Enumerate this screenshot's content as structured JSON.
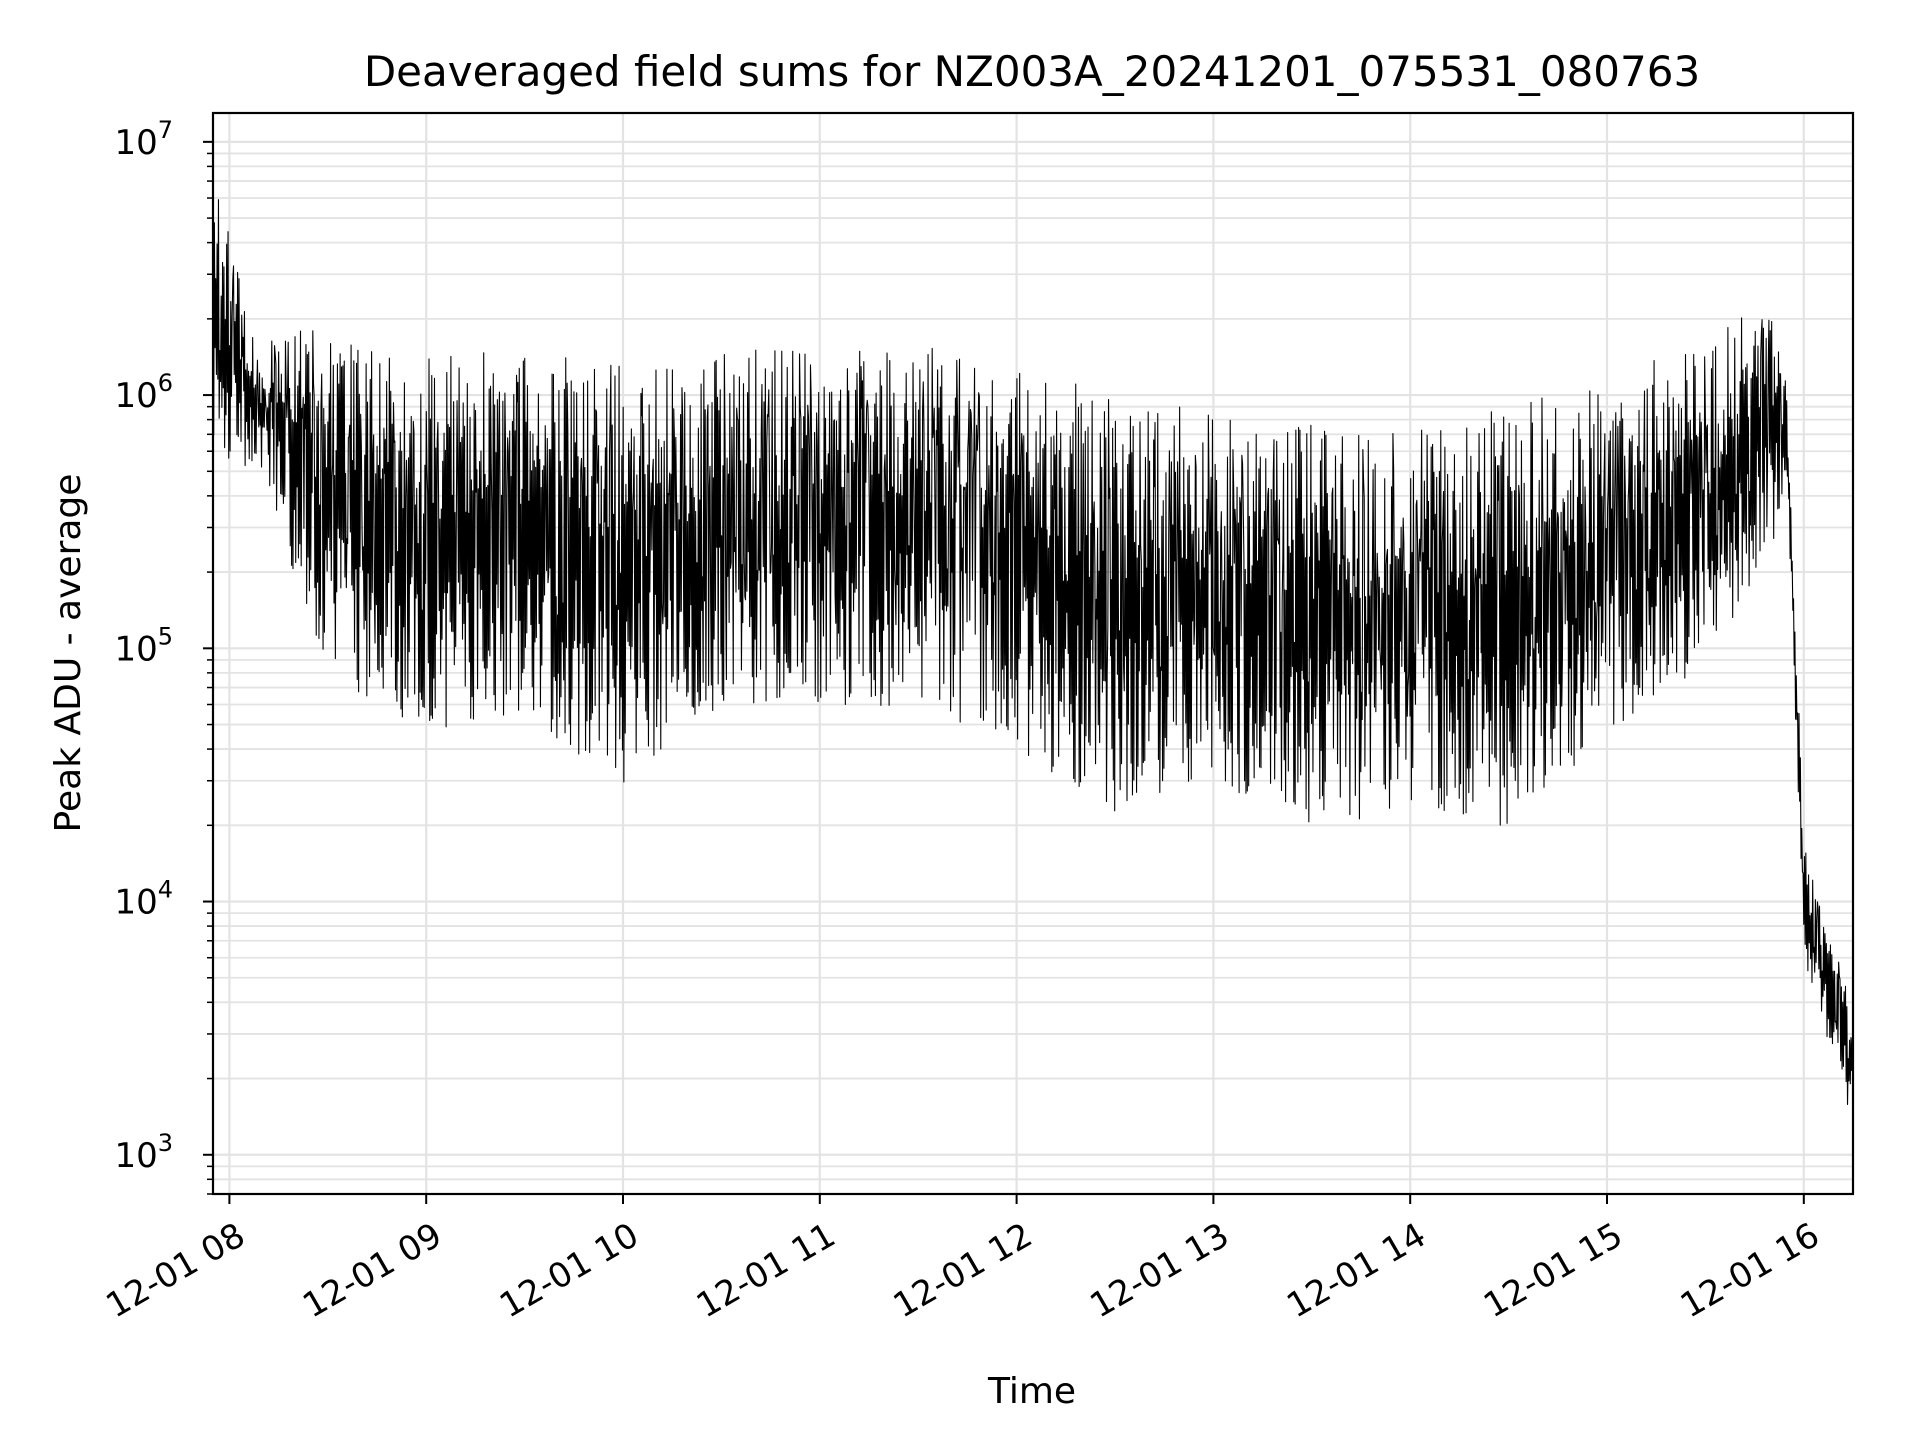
{
  "chart_data": {
    "type": "line",
    "title": "Deaveraged field sums for NZ003A_20241201_075531_080763",
    "xlabel": "Time",
    "ylabel": "Peak ADU - average",
    "y_scale": "log",
    "x_range": [
      "2024-12-01 07:55",
      "2024-12-01 16:15"
    ],
    "ylim": [
      700,
      13000000
    ],
    "grid": true,
    "line_color": "#000000",
    "x_ticks": [
      "12-01 08",
      "12-01 09",
      "12-01 10",
      "12-01 11",
      "12-01 12",
      "12-01 13",
      "12-01 14",
      "12-01 15",
      "12-01 16"
    ],
    "x_tick_times": [
      "2024-12-01 08:00",
      "2024-12-01 09:00",
      "2024-12-01 10:00",
      "2024-12-01 11:00",
      "2024-12-01 12:00",
      "2024-12-01 13:00",
      "2024-12-01 14:00",
      "2024-12-01 15:00",
      "2024-12-01 16:00"
    ],
    "y_ticks": [
      {
        "value": 1000,
        "base": "10",
        "exp": "3"
      },
      {
        "value": 10000,
        "base": "10",
        "exp": "4"
      },
      {
        "value": 100000,
        "base": "10",
        "exp": "5"
      },
      {
        "value": 1000000,
        "base": "10",
        "exp": "6"
      },
      {
        "value": 10000000,
        "base": "10",
        "exp": "7"
      }
    ],
    "series": [
      {
        "peaks": {
          "times": [
            "2024-12-01 07:55",
            "2024-12-01 08:10",
            "2024-12-01 08:15",
            "2024-12-01 08:30",
            "2024-12-01 09:00",
            "2024-12-01 09:30",
            "2024-12-01 10:00",
            "2024-12-01 10:30",
            "2024-12-01 11:00",
            "2024-12-01 11:30",
            "2024-12-01 12:00",
            "2024-12-01 12:30",
            "2024-12-01 13:00",
            "2024-12-01 13:30",
            "2024-12-01 14:00",
            "2024-12-01 14:30",
            "2024-12-01 15:00",
            "2024-12-01 15:30",
            "2024-12-01 15:50",
            "2024-12-01 15:55",
            "2024-12-01 16:00",
            "2024-12-01 16:15"
          ],
          "values": [
            8000000,
            1300000,
            2100000,
            1700000,
            1500000,
            1500000,
            1300000,
            1550000,
            1600000,
            1600000,
            1300000,
            1000000,
            850000,
            800000,
            750000,
            900000,
            1200000,
            1600000,
            2800000,
            1000000,
            17000,
            3800
          ]
        },
        "troughs": {
          "times": [
            "2024-12-01 07:55",
            "2024-12-01 08:10",
            "2024-12-01 08:15",
            "2024-12-01 08:30",
            "2024-12-01 09:00",
            "2024-12-01 09:30",
            "2024-12-01 10:00",
            "2024-12-01 10:30",
            "2024-12-01 11:00",
            "2024-12-01 11:30",
            "2024-12-01 12:00",
            "2024-12-01 12:30",
            "2024-12-01 13:00",
            "2024-12-01 13:30",
            "2024-12-01 14:00",
            "2024-12-01 14:30",
            "2024-12-01 15:00",
            "2024-12-01 15:30",
            "2024-12-01 15:50",
            "2024-12-01 15:55",
            "2024-12-01 16:00",
            "2024-12-01 16:15"
          ],
          "values": [
            550000,
            500000,
            300000,
            80000,
            45000,
            55000,
            28000,
            60000,
            60000,
            55000,
            40000,
            22000,
            30000,
            17000,
            25000,
            17000,
            45000,
            80000,
            250000,
            400000,
            6000,
            1300
          ]
        }
      }
    ]
  }
}
